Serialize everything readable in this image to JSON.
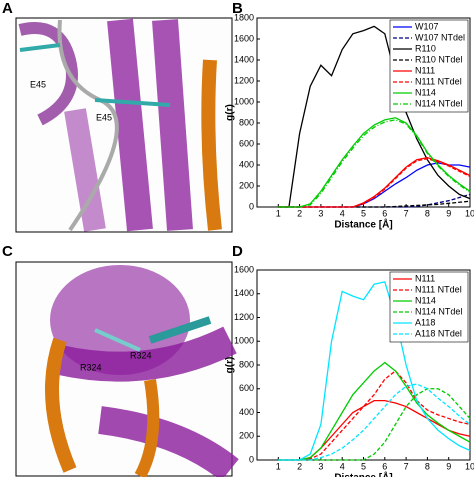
{
  "figure": {
    "panel_labels": [
      "A",
      "B",
      "C",
      "D"
    ],
    "image_labels_a": [
      "E45",
      "E45"
    ],
    "image_labels_c": [
      "R324",
      "R324"
    ]
  },
  "chart_data": [
    {
      "type": "line",
      "xlabel": "Distance [Å]",
      "ylabel": "g(r)",
      "x": [
        1,
        1.5,
        2,
        2.5,
        3,
        3.5,
        4,
        4.5,
        5,
        5.5,
        6,
        6.5,
        7,
        7.5,
        8,
        8.5,
        9,
        9.5,
        10
      ],
      "xlim": [
        0,
        10
      ],
      "xticks": [
        1,
        2,
        3,
        4,
        5,
        6,
        7,
        8,
        9,
        10
      ],
      "ylim": [
        0,
        1800
      ],
      "yticks": [
        0,
        200,
        400,
        600,
        800,
        1000,
        1200,
        1400,
        1600,
        1800
      ],
      "legend": "upper right",
      "series": [
        {
          "name": "W107",
          "color": "#0000ff",
          "dash": "solid",
          "values": [
            0,
            0,
            0,
            0,
            0,
            0,
            0,
            0,
            30,
            80,
            150,
            220,
            280,
            350,
            400,
            420,
            400,
            400,
            380
          ]
        },
        {
          "name": "W107 NTdel",
          "color": "#000080",
          "dash": "dashed",
          "values": [
            0,
            0,
            0,
            0,
            0,
            0,
            0,
            0,
            0,
            0,
            0,
            0,
            0,
            5,
            20,
            40,
            60,
            90,
            120
          ]
        },
        {
          "name": "R110",
          "color": "#000000",
          "dash": "solid",
          "values": [
            0,
            0,
            700,
            1150,
            1350,
            1250,
            1500,
            1650,
            1680,
            1720,
            1650,
            1250,
            900,
            650,
            450,
            300,
            200,
            120,
            80
          ]
        },
        {
          "name": "R110 NTdel",
          "color": "#000000",
          "dash": "dashed",
          "values": [
            0,
            0,
            0,
            0,
            0,
            0,
            0,
            0,
            0,
            0,
            0,
            5,
            10,
            15,
            20,
            25,
            35,
            45,
            55
          ]
        },
        {
          "name": "N111",
          "color": "#ff0000",
          "dash": "solid",
          "values": [
            0,
            0,
            0,
            0,
            0,
            0,
            0,
            0,
            40,
            100,
            180,
            280,
            380,
            450,
            470,
            440,
            400,
            350,
            300
          ]
        },
        {
          "name": "N111 NTdel",
          "color": "#ff0000",
          "dash": "dashed",
          "values": [
            0,
            0,
            0,
            0,
            0,
            0,
            0,
            0,
            30,
            90,
            170,
            270,
            370,
            440,
            460,
            430,
            390,
            340,
            290
          ]
        },
        {
          "name": "N114",
          "color": "#00cc00",
          "dash": "solid",
          "values": [
            0,
            0,
            0,
            30,
            150,
            300,
            450,
            580,
            700,
            780,
            830,
            850,
            800,
            680,
            520,
            400,
            300,
            220,
            150
          ]
        },
        {
          "name": "N114 NTdel",
          "color": "#00cc00",
          "dash": "dashdot",
          "values": [
            0,
            0,
            0,
            20,
            130,
            280,
            430,
            560,
            680,
            760,
            810,
            830,
            790,
            670,
            510,
            390,
            290,
            210,
            140
          ]
        }
      ]
    },
    {
      "type": "line",
      "xlabel": "Distance [Å]",
      "ylabel": "g(r)",
      "x": [
        1,
        1.5,
        2,
        2.5,
        3,
        3.5,
        4,
        4.5,
        5,
        5.5,
        6,
        6.5,
        7,
        7.5,
        8,
        8.5,
        9,
        9.5,
        10
      ],
      "xlim": [
        0,
        10
      ],
      "xticks": [
        1,
        2,
        3,
        4,
        5,
        6,
        7,
        8,
        9,
        10
      ],
      "ylim": [
        0,
        1600
      ],
      "yticks": [
        0,
        200,
        400,
        600,
        800,
        1000,
        1200,
        1400,
        1600
      ],
      "legend": "upper right",
      "series": [
        {
          "name": "N111",
          "color": "#ff0000",
          "dash": "solid",
          "values": [
            0,
            0,
            0,
            20,
            100,
            200,
            300,
            400,
            450,
            500,
            500,
            480,
            450,
            400,
            350,
            300,
            250,
            220,
            200
          ]
        },
        {
          "name": "N111 NTdel",
          "color": "#ff0000",
          "dash": "dashed",
          "values": [
            0,
            0,
            0,
            10,
            50,
            150,
            250,
            350,
            450,
            550,
            680,
            750,
            650,
            500,
            420,
            380,
            350,
            320,
            300
          ]
        },
        {
          "name": "N114",
          "color": "#00cc00",
          "dash": "solid",
          "values": [
            0,
            0,
            0,
            20,
            100,
            250,
            400,
            550,
            650,
            750,
            820,
            750,
            620,
            480,
            380,
            310,
            250,
            200,
            150
          ]
        },
        {
          "name": "N114 NTdel",
          "color": "#00cc00",
          "dash": "dashed",
          "values": [
            0,
            0,
            0,
            0,
            0,
            0,
            0,
            0,
            0,
            50,
            150,
            300,
            450,
            550,
            600,
            600,
            550,
            450,
            350
          ]
        },
        {
          "name": "A118",
          "color": "#00e5ff",
          "dash": "solid",
          "values": [
            0,
            0,
            0,
            50,
            300,
            1000,
            1420,
            1380,
            1350,
            1480,
            1500,
            1200,
            800,
            500,
            350,
            250,
            180,
            120,
            80
          ]
        },
        {
          "name": "A118 NTdel",
          "color": "#00e5ff",
          "dash": "dashed",
          "values": [
            0,
            0,
            0,
            0,
            20,
            50,
            100,
            170,
            250,
            350,
            450,
            550,
            620,
            640,
            600,
            520,
            450,
            370,
            300
          ]
        }
      ]
    }
  ]
}
